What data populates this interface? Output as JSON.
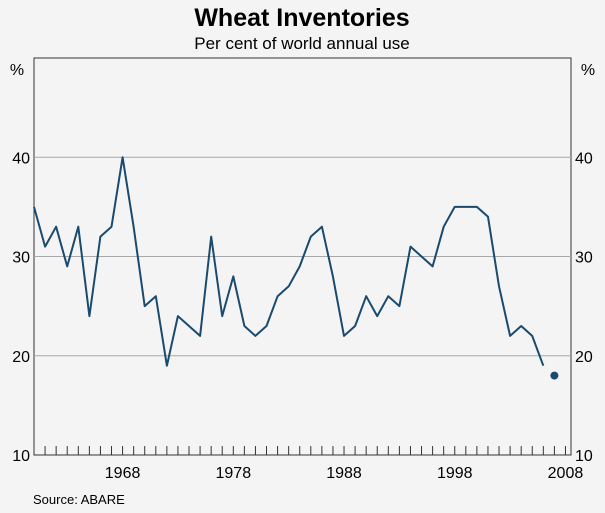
{
  "chart_data": {
    "type": "line",
    "title": "Wheat Inventories",
    "subtitle": "Per cent of world annual use",
    "ylabel_left": "%",
    "ylabel_right": "%",
    "source": "Source: ABARE",
    "ylim": [
      10,
      50
    ],
    "yticks": [
      10,
      20,
      30,
      40
    ],
    "xlim": [
      1960,
      2008.5
    ],
    "xticks": [
      1968,
      1978,
      1988,
      1998,
      2008
    ],
    "grid": true,
    "colors": {
      "line": "#1a4a6e",
      "grid": "#a8a8a8",
      "axis": "#333333"
    },
    "series": [
      {
        "x": [
          1960,
          1961,
          1962,
          1963,
          1964,
          1965,
          1966,
          1967,
          1968,
          1969,
          1970,
          1971,
          1972,
          1973,
          1974,
          1975,
          1976,
          1977,
          1978,
          1979,
          1980,
          1981,
          1982,
          1983,
          1984,
          1985,
          1986,
          1987,
          1988,
          1989,
          1990,
          1991,
          1992,
          1993,
          1994,
          1995,
          1996,
          1997,
          1998,
          1999,
          2000,
          2001,
          2002,
          2003,
          2004,
          2005,
          2006
        ],
        "values": [
          35,
          31,
          33,
          29,
          33,
          24,
          32,
          33,
          40,
          33,
          25,
          26,
          19,
          24,
          23,
          22,
          32,
          24,
          28,
          23,
          22,
          23,
          26,
          27,
          29,
          32,
          33,
          28,
          22,
          23,
          26,
          24,
          26,
          25,
          31,
          30,
          29,
          33,
          35,
          35,
          35,
          34,
          27,
          22,
          23,
          22,
          19
        ]
      }
    ],
    "point": {
      "x": 2007,
      "value": 18
    }
  }
}
